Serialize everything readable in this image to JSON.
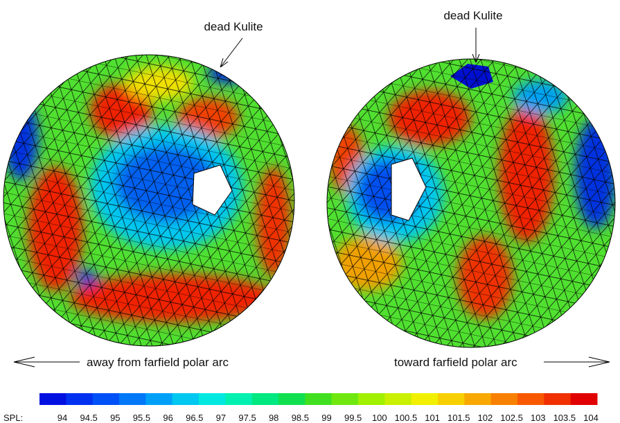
{
  "annotations": {
    "left_sensor": "dead Kulite",
    "right_sensor": "dead Kulite",
    "left_direction": "away from farfield polar arc",
    "right_direction": "toward farfield polar arc"
  },
  "colorbar": {
    "label": "SPL:",
    "ticks": [
      94,
      94.5,
      95,
      95.5,
      96,
      96.5,
      97,
      97.5,
      98,
      98.5,
      99,
      99.5,
      100,
      100.5,
      101,
      101.5,
      102,
      102.5,
      103,
      103.5,
      104
    ],
    "colors": [
      "#0010e0",
      "#0030f0",
      "#0050f8",
      "#0078f8",
      "#00a0f8",
      "#00c8f0",
      "#00e8e0",
      "#00f0b0",
      "#00e880",
      "#10e050",
      "#40e020",
      "#70e810",
      "#a0f000",
      "#c8f000",
      "#f0f000",
      "#f8d000",
      "#f8a800",
      "#f88000",
      "#f85800",
      "#f03000",
      "#e00000"
    ]
  }
}
